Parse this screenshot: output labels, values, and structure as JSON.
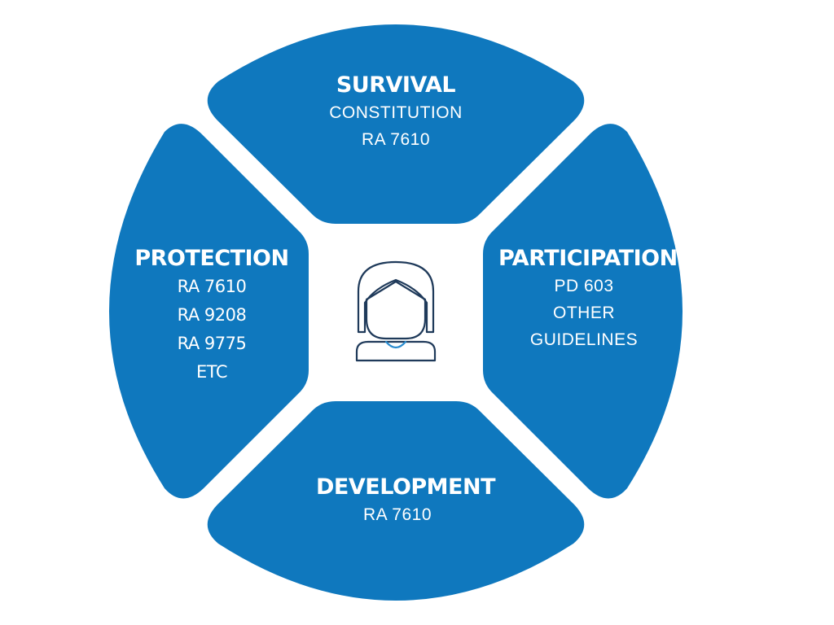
{
  "diagram": {
    "colors": {
      "segment": "#0f78be",
      "background": "#ffffff",
      "icon_stroke": "#1f3a5a",
      "icon_accent": "#2a8ccf"
    },
    "center_icon": "child-avatar-icon",
    "segments": {
      "survival": {
        "title": "SURVIVAL",
        "lines": [
          "CONSTITUTION",
          "RA 7610"
        ]
      },
      "participation": {
        "title": "PARTICIPATION",
        "lines": [
          "PD 603",
          "OTHER",
          "GUIDELINES"
        ]
      },
      "protection": {
        "title": "PROTECTION",
        "lines": [
          "RA 7610",
          "RA 9208",
          "RA 9775",
          "ETC"
        ]
      },
      "development": {
        "title": "DEVELOPMENT",
        "lines": [
          "RA 7610"
        ]
      }
    }
  }
}
